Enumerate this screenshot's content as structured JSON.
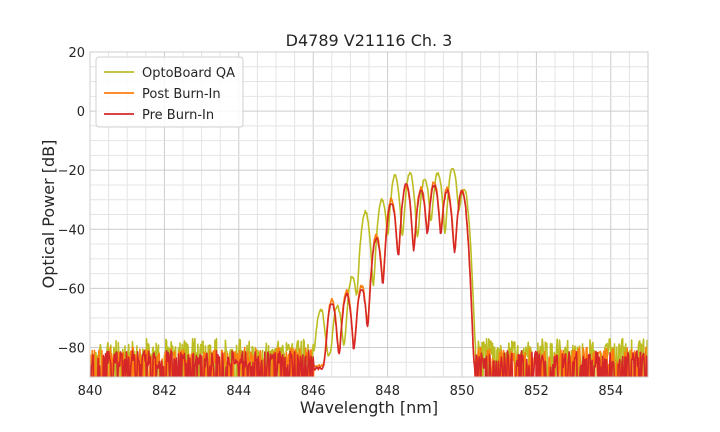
{
  "chart_data": {
    "type": "line",
    "title": "D4789 V21116 Ch. 3",
    "xlabel": "Wavelength [nm]",
    "ylabel": "Optical Power [dB]",
    "xlim": [
      840,
      855
    ],
    "ylim": [
      -90,
      20
    ],
    "xticks": [
      840,
      842,
      844,
      846,
      848,
      850,
      852,
      854
    ],
    "yticks": [
      20,
      0,
      -20,
      -40,
      -60,
      -80
    ],
    "xtick_labels": [
      "840",
      "842",
      "844",
      "846",
      "848",
      "850",
      "852",
      "854"
    ],
    "ytick_labels": [
      "20",
      "0",
      "−20",
      "−40",
      "−60",
      "−80"
    ],
    "grid": true,
    "legend_position": "top-left",
    "series": [
      {
        "name": "OptoBoard QA",
        "color": "#bcbd22",
        "noise_floor": -80,
        "peaks": [
          {
            "x": 846.2,
            "y": -67
          },
          {
            "x": 846.65,
            "y": -66
          },
          {
            "x": 847.05,
            "y": -56
          },
          {
            "x": 847.4,
            "y": -34
          },
          {
            "x": 847.85,
            "y": -30
          },
          {
            "x": 848.2,
            "y": -22
          },
          {
            "x": 848.6,
            "y": -21
          },
          {
            "x": 849.0,
            "y": -23
          },
          {
            "x": 849.35,
            "y": -21
          },
          {
            "x": 849.75,
            "y": -19
          },
          {
            "x": 850.05,
            "y": -26
          }
        ]
      },
      {
        "name": "Post Burn-In",
        "color": "#ff7f0e",
        "noise_floor": -83,
        "peaks": [
          {
            "x": 846.5,
            "y": -64
          },
          {
            "x": 846.9,
            "y": -61
          },
          {
            "x": 847.3,
            "y": -59
          },
          {
            "x": 847.7,
            "y": -42
          },
          {
            "x": 848.1,
            "y": -30
          },
          {
            "x": 848.5,
            "y": -25
          },
          {
            "x": 848.9,
            "y": -26
          },
          {
            "x": 849.25,
            "y": -24
          },
          {
            "x": 849.6,
            "y": -26
          },
          {
            "x": 850.0,
            "y": -27
          }
        ]
      },
      {
        "name": "Pre Burn-In",
        "color": "#d62728",
        "noise_floor": -84,
        "peaks": [
          {
            "x": 846.5,
            "y": -65
          },
          {
            "x": 846.9,
            "y": -62
          },
          {
            "x": 847.3,
            "y": -60
          },
          {
            "x": 847.7,
            "y": -43
          },
          {
            "x": 848.1,
            "y": -31
          },
          {
            "x": 848.5,
            "y": -25
          },
          {
            "x": 848.9,
            "y": -27
          },
          {
            "x": 849.25,
            "y": -25
          },
          {
            "x": 849.6,
            "y": -27
          },
          {
            "x": 850.0,
            "y": -27
          }
        ]
      }
    ]
  }
}
